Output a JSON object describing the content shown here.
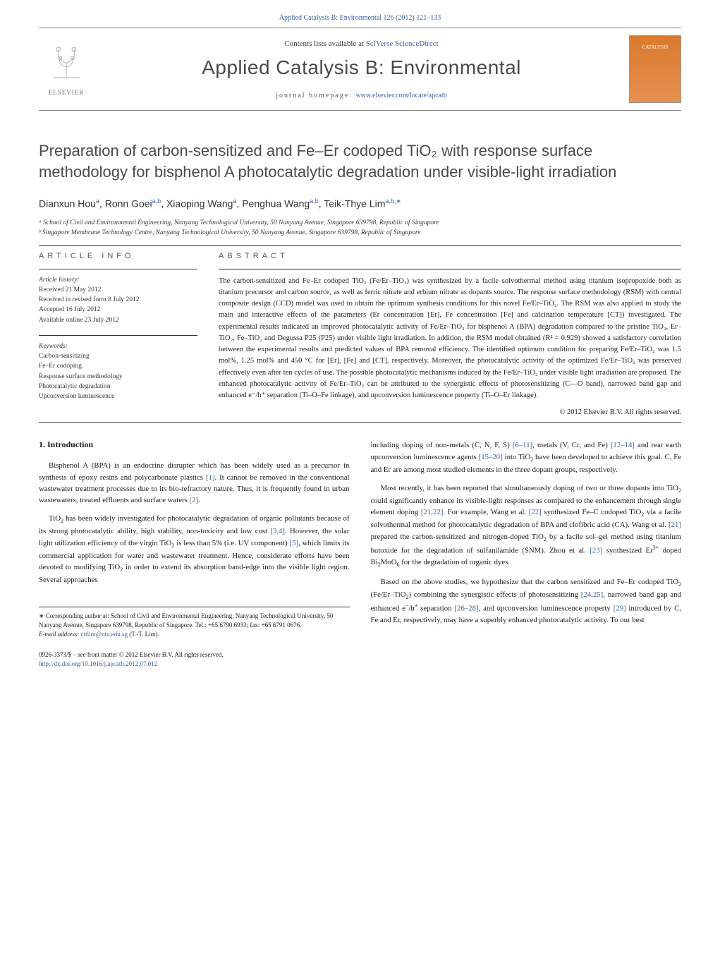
{
  "header": {
    "citation": "Applied Catalysis B: Environmental 126 (2012) 121–133",
    "contents_prefix": "Contents lists available at ",
    "contents_link": "SciVerse ScienceDirect",
    "journal_title": "Applied Catalysis B: Environmental",
    "homepage_prefix": "journal homepage: ",
    "homepage_link": "www.elsevier.com/locate/apcatb",
    "publisher": "ELSEVIER",
    "cover_text": "CATALYSIS"
  },
  "article": {
    "title": "Preparation of carbon-sensitized and Fe–Er codoped TiO₂ with response surface methodology for bisphenol A photocatalytic degradation under visible-light irradiation",
    "authors_html": "Dianxun Hou<sup>a</sup>, Ronn Goei<sup>a,b</sup>, Xiaoping Wang<sup>a</sup>, Penghua Wang<sup>a,b</sup>, Teik-Thye Lim<sup>a,b,∗</sup>",
    "affiliations": [
      "ᵃ School of Civil and Environmental Engineering, Nanyang Technological University, 50 Nanyang Avenue, Singapore 639798, Republic of Singapore",
      "ᵇ Singapore Membrane Technology Centre, Nanyang Technological University, 50 Nanyang Avenue, Singapore 639798, Republic of Singapore"
    ]
  },
  "info": {
    "label_info": "article info",
    "history_label": "Article history:",
    "history": [
      "Received 21 May 2012",
      "Received in revised form 8 July 2012",
      "Accepted 16 July 2012",
      "Available online 23 July 2012"
    ],
    "keywords_label": "Keywords:",
    "keywords": [
      "Carbon-sensitizing",
      "Fe–Er codoping",
      "Response surface methodology",
      "Photocatalytic degradation",
      "Upconversion luminescence"
    ]
  },
  "abstract": {
    "label": "abstract",
    "text": "The carbon-sensitized and Fe–Er codoped TiO₂ (Fe/Er–TiO₂) was synthesized by a facile solvothermal method using titanium isopropoxide both as titanium precursor and carbon source, as well as ferric nitrate and erbium nitrate as dopants source. The response surface methodology (RSM) with central composite design (CCD) model was used to obtain the optimum synthesis conditions for this novel Fe/Er–TiO₂. The RSM was also applied to study the main and interactive effects of the parameters (Er concentration [Er], Fe concentration [Fe] and calcination temperature [CT]) investigated. The experimental results indicated an improved photocatalytic activity of Fe/Er–TiO₂ for bisphenol A (BPA) degradation compared to the pristine TiO₂, Er–TiO₂, Fe–TiO₂ and Degussa P25 (P25) under visible light irradiation. In addition, the RSM model obtained (R² = 0.929) showed a satisfactory correlation between the experimental results and predicted values of BPA removal efficiency. The identified optimum condition for preparing Fe/Er–TiO₂ was 1.5 mol%, 1.25 mol% and 450 °C for [Er], [Fe] and [CT], respectively. Moreover, the photocatalytic activity of the optimized Fe/Er–TiO₂ was preserved effectively even after ten cycles of use. The possible photocatalytic mechanisms induced by the Fe/Er–TiO₂ under visible light irradiation are proposed. The enhanced photocatalytic activity of Fe/Er–TiO₂ can be attributed to the synergistic effects of photosensitizing (C—O band), narrowed band gap and enhanced e⁻/h⁺ separation (Ti–O–Fe linkage), and upconversion luminescence property (Ti–O–Er linkage).",
    "copyright": "© 2012 Elsevier B.V. All rights reserved."
  },
  "body": {
    "heading": "1. Introduction",
    "left_paras": [
      "Bisphenol A (BPA) is an endocrine disrupter which has been widely used as a precursor in synthesis of epoxy resins and polycarbonate plastics [1]. It cannot be removed in the conventional wastewater treatment processes due to its bio-refractory nature. Thus, it is frequently found in urban wastewaters, treated effluents and surface waters [2].",
      "TiO₂ has been widely investigated for photocatalytic degradation of organic pollutants because of its strong photocatalytic ability, high stability, non-toxicity and low cost [3,4]. However, the solar light utilization efficiency of the virgin TiO₂ is less than 5% (i.e. UV component) [5], which limits its commercial application for water and wastewater treatment. Hence, considerate efforts have been devoted to modifying TiO₂ in order to extend its absorption band-edge into the visible light region. Several approaches"
    ],
    "right_paras": [
      "including doping of non-metals (C, N, F, S) [6–11], metals (V, Cr, and Fe) [12–14] and rear earth upconversion luminescence agents [15–20] into TiO₂ have been developed to achieve this goal. C, Fe and Er are among most studied elements in the three dopant groups, respectively.",
      "Most recently, it has been reported that simultaneously doping of two or three dopants into TiO₂ could significantly enhance its visible-light responses as compared to the enhancement through single element doping [21,22]. For example, Wang et al. [22] synthesized Fe–C codoped TiO₂ via a facile solvothermal method for photocatalytic degradation of BPA and clofibric acid (CA). Wang et al. [21] prepared the carbon-sensitized and nitrogen-doped TiO₂ by a facile sol–gel method using titanium butoxide for the degradation of sulfanilamide (SNM). Zhou et al. [23] synthesized Er³⁺ doped Bi₂MoO₆ for the degradation of organic dyes.",
      "Based on the above studies, we hypothesize that the carbon sensitized and Fe–Er codoped TiO₂ (Fe/Er–TiO₂) combining the synergistic effects of photosensitizing [24,25], narrowed band gap and enhanced e⁻/h⁺ separation [26–28], and upconversion luminescence property [29] introduced by C, Fe and Er, respectively, may have a superbly enhanced photocatalytic activity. To our best"
    ]
  },
  "footnotes": {
    "corr": "∗ Corresponding author at: School of Civil and Environmental Engineering, Nanyang Technological University, 50 Nanyang Avenue, Singapore 639798, Republic of Singapore. Tel.: +65 6790 6933; fax: +65 6791 0676.",
    "email_label": "E-mail address: ",
    "email": "cttlim@ntu.edu.sg",
    "email_suffix": " (T.-T. Lim)."
  },
  "footer": {
    "line1": "0926-3373/$ – see front matter © 2012 Elsevier B.V. All rights reserved.",
    "doi": "http://dx.doi.org/10.1016/j.apcatb.2012.07.012"
  },
  "refs": {
    "r1": "[1]",
    "r2": "[2]",
    "r34": "[3,4]",
    "r5": "[5]",
    "r611": "[6–11]",
    "r1214": "[12–14]",
    "r1520": "[15–20]",
    "r2122": "[21,22]",
    "r22": "[22]",
    "r21": "[21]",
    "r23": "[23]",
    "r2425": "[24,25]",
    "r2628": "[26–28]",
    "r29": "[29]"
  },
  "colors": {
    "link": "#3a5f9c",
    "text": "#1a1a1a",
    "muted": "#555555",
    "orange": "#ec8936"
  }
}
